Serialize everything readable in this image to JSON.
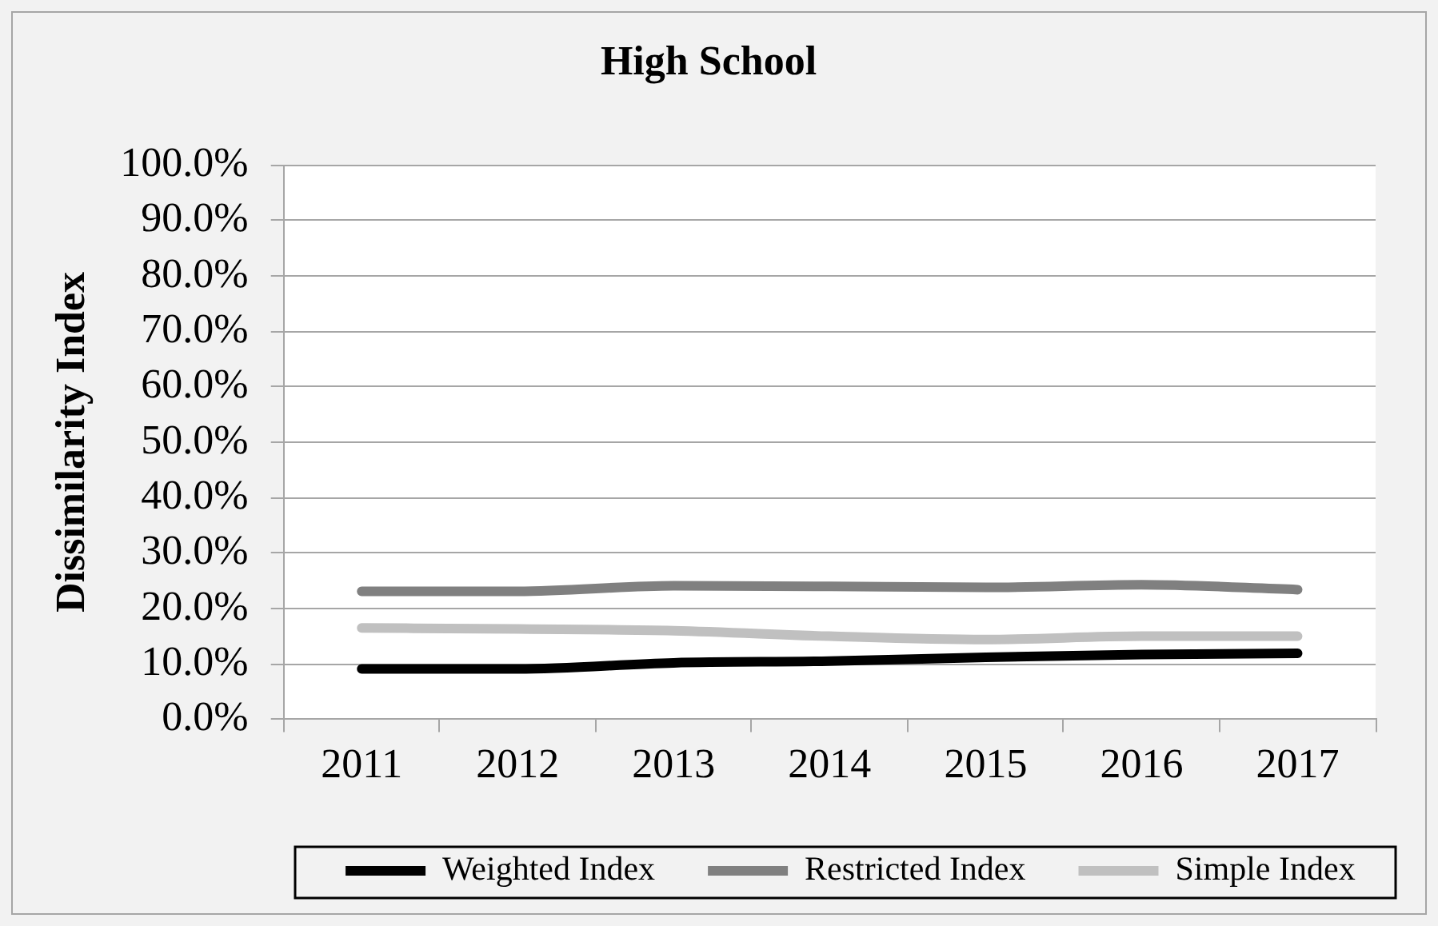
{
  "chart_data": {
    "type": "line",
    "title": "High School",
    "ylabel": "Dissimilarity Index",
    "categories": [
      "2011",
      "2012",
      "2013",
      "2014",
      "2015",
      "2016",
      "2017"
    ],
    "series": [
      {
        "name": "Weighted Index",
        "color": "#000000",
        "values": [
          9.1,
          9.1,
          10.2,
          10.5,
          11.2,
          11.7,
          11.9
        ]
      },
      {
        "name": "Restricted Index",
        "color": "#808080",
        "values": [
          23.1,
          23.1,
          24.1,
          24.0,
          23.8,
          24.3,
          23.4
        ]
      },
      {
        "name": "Simple Index",
        "color": "#c0c0c0",
        "values": [
          16.5,
          16.3,
          16.0,
          15.0,
          14.4,
          15.0,
          15.0
        ]
      }
    ],
    "ylim": [
      0,
      100
    ],
    "yticks": [
      {
        "value": 0,
        "label": "0.0%"
      },
      {
        "value": 10,
        "label": "10.0%"
      },
      {
        "value": 20,
        "label": "20.0%"
      },
      {
        "value": 30,
        "label": "30.0%"
      },
      {
        "value": 40,
        "label": "40.0%"
      },
      {
        "value": 50,
        "label": "50.0%"
      },
      {
        "value": 60,
        "label": "60.0%"
      },
      {
        "value": 70,
        "label": "70.0%"
      },
      {
        "value": 80,
        "label": "80.0%"
      },
      {
        "value": 90,
        "label": "90.0%"
      },
      {
        "value": 100,
        "label": "100.0%"
      }
    ],
    "grid": "y",
    "legend": "bottom",
    "marker": "none",
    "line_style": "solid"
  }
}
